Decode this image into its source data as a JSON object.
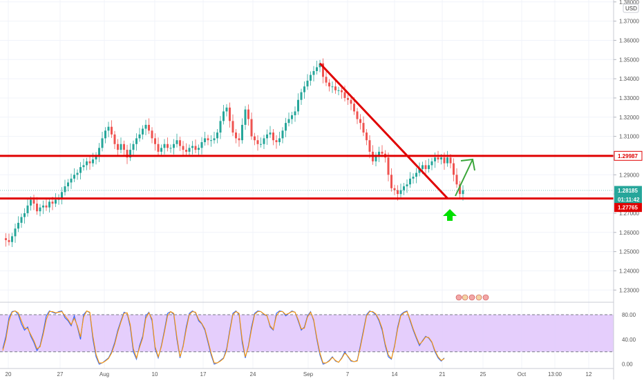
{
  "currency": "USD",
  "colors": {
    "up": "#26a69a",
    "down": "#ef5350",
    "line_red": "#e00000",
    "arrow_green": "#3aa63a",
    "big_arrow": "#00e000",
    "price_badge": "#26a69a",
    "stoch_k": "#2962ff",
    "stoch_d": "#ff9800",
    "stoch_band": "#e1c6fb"
  },
  "chart_data": [
    {
      "type": "candlestick",
      "title": "",
      "xlabel": "",
      "ylabel": "",
      "ylim": [
        1.224,
        1.381
      ],
      "y_ticks": [
        "1.38000",
        "1.37000",
        "1.36000",
        "1.35000",
        "1.34000",
        "1.33000",
        "1.32000",
        "1.31000",
        "1.30000",
        "1.29000",
        "1.28000",
        "1.27000",
        "1.26000",
        "1.25000",
        "1.24000",
        "1.23000"
      ],
      "x_ticks": [
        "20",
        "27",
        "Aug",
        "10",
        "17",
        "24",
        "Sep",
        "7",
        "14",
        "21",
        "25",
        "Oct",
        "13:00",
        "12"
      ],
      "price_labels": {
        "resistance": "1.29987",
        "current": "1.28185",
        "countdown": "01:11:42",
        "support": "1.27765"
      },
      "close_path": [
        1.257,
        1.256,
        1.255,
        1.258,
        1.262,
        1.265,
        1.268,
        1.27,
        1.274,
        1.277,
        1.275,
        1.271,
        1.273,
        1.274,
        1.273,
        1.276,
        1.275,
        1.277,
        1.278,
        1.281,
        1.284,
        1.286,
        1.288,
        1.29,
        1.291,
        1.294,
        1.295,
        1.297,
        1.296,
        1.298,
        1.3,
        1.304,
        1.309,
        1.313,
        1.315,
        1.311,
        1.306,
        1.303,
        1.306,
        1.303,
        1.299,
        1.303,
        1.306,
        1.309,
        1.311,
        1.314,
        1.316,
        1.313,
        1.309,
        1.306,
        1.302,
        1.304,
        1.306,
        1.304,
        1.304,
        1.306,
        1.308,
        1.305,
        1.303,
        1.302,
        1.304,
        1.305,
        1.303,
        1.304,
        1.307,
        1.309,
        1.308,
        1.308,
        1.309,
        1.312,
        1.318,
        1.323,
        1.325,
        1.318,
        1.312,
        1.309,
        1.308,
        1.316,
        1.324,
        1.319,
        1.31,
        1.308,
        1.306,
        1.306,
        1.309,
        1.311,
        1.312,
        1.308,
        1.307,
        1.309,
        1.313,
        1.317,
        1.319,
        1.321,
        1.323,
        1.329,
        1.333,
        1.336,
        1.339,
        1.342,
        1.344,
        1.346,
        1.348,
        1.341,
        1.338,
        1.336,
        1.336,
        1.334,
        1.334,
        1.333,
        1.33,
        1.329,
        1.327,
        1.323,
        1.319,
        1.317,
        1.312,
        1.308,
        1.302,
        1.297,
        1.3,
        1.302,
        1.301,
        1.299,
        1.29,
        1.283,
        1.282,
        1.28,
        1.282,
        1.284,
        1.285,
        1.288,
        1.289,
        1.291,
        1.293,
        1.295,
        1.293,
        1.295,
        1.297,
        1.299,
        1.298,
        1.299,
        1.296,
        1.299,
        1.296,
        1.29,
        1.285,
        1.28,
        1.282
      ],
      "lines": [
        {
          "kind": "horizontal",
          "value": 1.29987
        },
        {
          "kind": "horizontal",
          "value": 1.27765
        },
        {
          "kind": "trendline",
          "from": 1.348,
          "to": 1.2776
        }
      ]
    },
    {
      "type": "line",
      "indicator": "stochastic",
      "ylim": [
        -7,
        100
      ],
      "y_ticks": [
        "80.00",
        "40.00",
        "0.00"
      ],
      "bands": [
        20,
        80
      ],
      "series": [
        {
          "values": [
            25,
            45,
            75,
            85,
            86,
            80,
            65,
            55,
            60,
            45,
            35,
            22,
            30,
            52,
            78,
            86,
            84,
            82,
            85,
            86,
            75,
            70,
            62,
            78,
            60,
            40,
            80,
            86,
            83,
            40,
            12,
            0,
            2,
            6,
            10,
            20,
            35,
            55,
            70,
            84,
            82,
            60,
            20,
            8,
            30,
            45,
            78,
            84,
            70,
            25,
            10,
            30,
            55,
            82,
            85,
            80,
            40,
            10,
            30,
            60,
            82,
            86,
            83,
            70,
            65,
            55,
            35,
            15,
            0,
            2,
            6,
            10,
            25,
            55,
            82,
            86,
            80,
            35,
            10,
            30,
            60,
            82,
            86,
            85,
            80,
            78,
            60,
            55,
            82,
            86,
            85,
            78,
            82,
            86,
            84,
            70,
            55,
            60,
            78,
            85,
            70,
            40,
            15,
            0,
            2,
            6,
            12,
            5,
            3,
            10,
            20,
            12,
            5,
            4,
            6,
            30,
            55,
            80,
            86,
            84,
            80,
            70,
            55,
            30,
            12,
            8,
            30,
            60,
            80,
            84,
            86,
            70,
            55,
            42,
            30,
            38,
            45,
            42,
            35,
            20,
            10,
            5,
            10
          ]
        },
        {
          "values": [
            22,
            40,
            70,
            84,
            86,
            83,
            70,
            58,
            58,
            48,
            38,
            25,
            28,
            48,
            72,
            85,
            85,
            83,
            84,
            85,
            78,
            72,
            64,
            74,
            62,
            44,
            76,
            86,
            84,
            45,
            16,
            2,
            2,
            5,
            9,
            18,
            32,
            52,
            68,
            82,
            83,
            64,
            25,
            10,
            27,
            42,
            74,
            83,
            73,
            28,
            12,
            28,
            52,
            78,
            85,
            82,
            44,
            12,
            28,
            56,
            80,
            85,
            84,
            72,
            66,
            57,
            38,
            18,
            2,
            2,
            5,
            9,
            22,
            52,
            80,
            85,
            82,
            40,
            12,
            28,
            56,
            80,
            85,
            85,
            81,
            78,
            62,
            56,
            78,
            85,
            85,
            80,
            82,
            85,
            84,
            72,
            57,
            58,
            76,
            84,
            72,
            43,
            18,
            2,
            2,
            5,
            11,
            6,
            3,
            9,
            18,
            13,
            6,
            4,
            5,
            27,
            52,
            78,
            85,
            85,
            81,
            72,
            58,
            33,
            15,
            9,
            28,
            57,
            78,
            83,
            85,
            72,
            57,
            44,
            32,
            37,
            44,
            43,
            36,
            22,
            12,
            6,
            9
          ]
        }
      ]
    }
  ]
}
